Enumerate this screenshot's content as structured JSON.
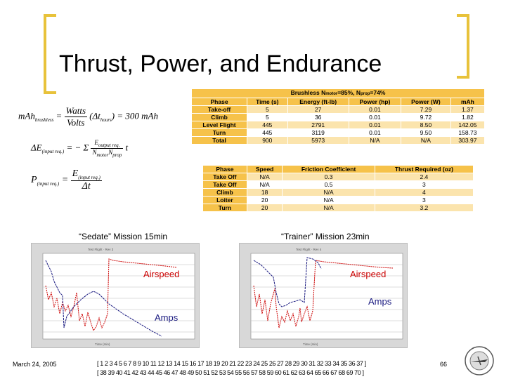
{
  "title": "Thrust, Power, and Endurance",
  "equations": {
    "mah_lhs": "mAh",
    "mah_lhs_sub": "brushless",
    "mah_num": "Watts",
    "mah_den": "Volts",
    "mah_rhs": "= 300 mAh",
    "energy": "ΔE(input req.) = Σ (E_output req. / N_motor N_prop) t",
    "power": "P(input req.) = E(input req.) / Δt"
  },
  "table1": {
    "caption": "Brushless N_motor=85%, N_prop=74%",
    "headers": [
      "Phase",
      "Time (s)",
      "Energy (ft-lb)",
      "Power (hp)",
      "Power (W)",
      "mAh"
    ],
    "rows": [
      [
        "Take-off",
        "5",
        "27",
        "0.01",
        "7.29",
        "1.37"
      ],
      [
        "Climb",
        "5",
        "36",
        "0.01",
        "9.72",
        "1.82"
      ],
      [
        "Level Flight",
        "445",
        "2791",
        "0.01",
        "8.50",
        "142.05"
      ],
      [
        "Turn",
        "445",
        "3119",
        "0.01",
        "9.50",
        "158.73"
      ],
      [
        "Total",
        "900",
        "5973",
        "N/A",
        "N/A",
        "303.97"
      ]
    ]
  },
  "table2": {
    "headers": [
      "Phase",
      "Speed",
      "Friction Coefficient",
      "Thrust Required (oz)"
    ],
    "rows": [
      [
        "Take Off",
        "N/A",
        "0.3",
        "2.4"
      ],
      [
        "Take Off",
        "N/A",
        "0.5",
        "3"
      ],
      [
        "Climb",
        "18",
        "N/A",
        "4"
      ],
      [
        "Loiter",
        "20",
        "N/A",
        "3"
      ],
      [
        "Turn",
        "20",
        "N/A",
        "3.2"
      ]
    ]
  },
  "charts": {
    "left_caption": "“Sedate” Mission 15min",
    "right_caption": "“Trainer” Mission 23min",
    "left_airspeed": "Airspeed",
    "left_amps": "Amps",
    "right_airspeed": "Airspeed",
    "right_amps": "Amps",
    "colors": {
      "airspeed": "#cc0000",
      "amps": "#1a1a80",
      "background": "#d8d8d8"
    }
  },
  "footer": {
    "date": "March 24, 2005",
    "page": "66",
    "nav_line1": "[ 1 2 3 4 5 6 7 8 9 10 11 12 13 14 15 16 17 18 19 20 21 22 23 24 25 26 27 28 29 30 31 32 33 34 35 36 37 ]",
    "nav_line2": "[ 38 39 40 41 42 43 44 45 46 47 48 49 50 51 52 53 54 55 56 57 58 59 60 61 62 63 64 65 66 67 68 69 70 ]"
  }
}
